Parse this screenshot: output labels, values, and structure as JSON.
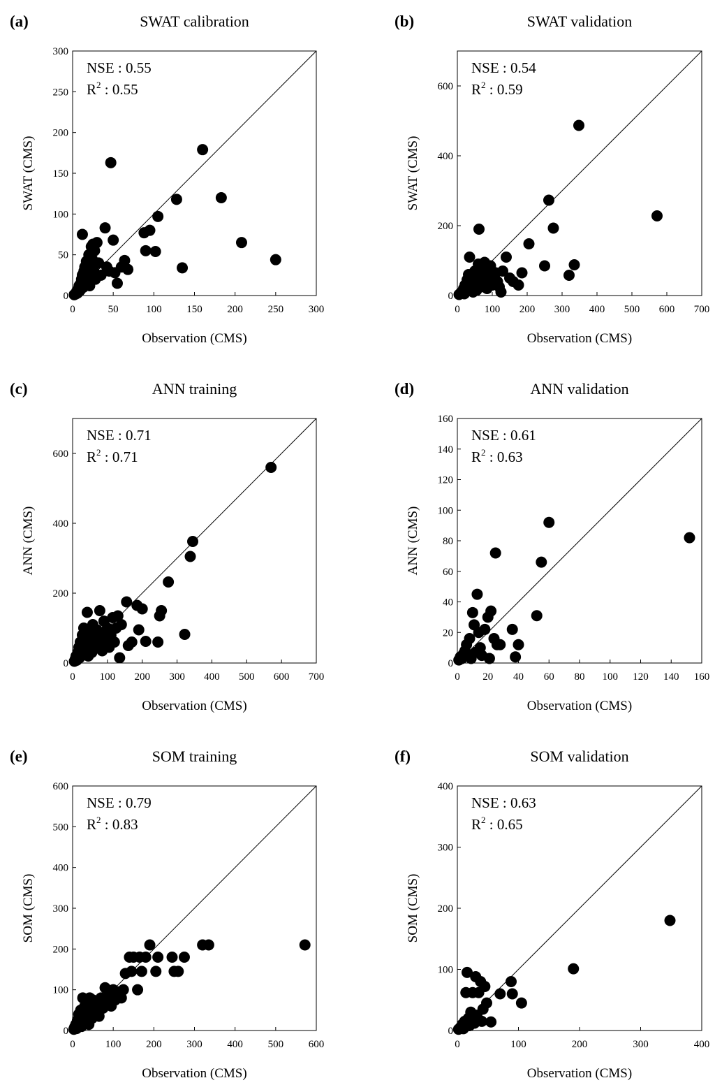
{
  "figure": {
    "panels": [
      {
        "id": "a",
        "panel_label": "(a)",
        "title": "SWAT calibration",
        "nse_label": "NSE : 0.55",
        "r2_prefix": "R",
        "r2_sup": "2",
        "r2_value": " : 0.55"
      },
      {
        "id": "b",
        "panel_label": "(b)",
        "title": "SWAT validation",
        "nse_label": "NSE : 0.54",
        "r2_prefix": "R",
        "r2_sup": "2",
        "r2_value": " : 0.59"
      },
      {
        "id": "c",
        "panel_label": "(c)",
        "title": "ANN training",
        "nse_label": "NSE : 0.71",
        "r2_prefix": "R",
        "r2_sup": "2",
        "r2_value": " : 0.71"
      },
      {
        "id": "d",
        "panel_label": "(d)",
        "title": "ANN validation",
        "nse_label": "NSE : 0.61",
        "r2_prefix": "R",
        "r2_sup": "2",
        "r2_value": " : 0.63"
      },
      {
        "id": "e",
        "panel_label": "(e)",
        "title": "SOM training",
        "nse_label": "NSE : 0.79",
        "r2_prefix": "R",
        "r2_sup": "2",
        "r2_value": " : 0.83"
      },
      {
        "id": "f",
        "panel_label": "(f)",
        "title": "SOM validation",
        "nse_label": "NSE : 0.63",
        "r2_prefix": "R",
        "r2_sup": "2",
        "r2_value": " : 0.65"
      }
    ]
  },
  "chart_data": [
    {
      "type": "scatter",
      "title": "SWAT calibration",
      "xlabel": "Observation (CMS)",
      "ylabel": "SWAT (CMS)",
      "xlim": [
        0,
        300
      ],
      "ylim": [
        0,
        300
      ],
      "xticks": [
        "0",
        "50",
        "100",
        "150",
        "200",
        "250",
        "300"
      ],
      "yticks": [
        "0",
        "50",
        "100",
        "150",
        "200",
        "250",
        "300"
      ],
      "reference_line": "1:1",
      "points": [
        [
          2,
          1
        ],
        [
          4,
          2
        ],
        [
          5,
          5
        ],
        [
          6,
          3
        ],
        [
          7,
          8
        ],
        [
          8,
          12
        ],
        [
          9,
          6
        ],
        [
          10,
          15
        ],
        [
          11,
          20
        ],
        [
          12,
          25
        ],
        [
          13,
          10
        ],
        [
          14,
          30
        ],
        [
          15,
          35
        ],
        [
          16,
          22
        ],
        [
          17,
          42
        ],
        [
          18,
          18
        ],
        [
          19,
          28
        ],
        [
          20,
          50
        ],
        [
          21,
          12
        ],
        [
          22,
          38
        ],
        [
          23,
          60
        ],
        [
          24,
          45
        ],
        [
          25,
          63
        ],
        [
          26,
          30
        ],
        [
          27,
          55
        ],
        [
          28,
          20
        ],
        [
          30,
          65
        ],
        [
          32,
          40
        ],
        [
          35,
          25
        ],
        [
          40,
          83
        ],
        [
          42,
          35
        ],
        [
          45,
          30
        ],
        [
          47,
          163
        ],
        [
          50,
          68
        ],
        [
          52,
          28
        ],
        [
          55,
          15
        ],
        [
          60,
          35
        ],
        [
          64,
          43
        ],
        [
          68,
          32
        ],
        [
          88,
          77
        ],
        [
          90,
          55
        ],
        [
          95,
          80
        ],
        [
          102,
          54
        ],
        [
          105,
          97
        ],
        [
          12,
          75
        ],
        [
          128,
          118
        ],
        [
          135,
          34
        ],
        [
          160,
          179
        ],
        [
          183,
          120
        ],
        [
          208,
          65
        ],
        [
          250,
          44
        ]
      ]
    },
    {
      "type": "scatter",
      "title": "SWAT validation",
      "xlabel": "Observation (CMS)",
      "ylabel": "SWAT (CMS)",
      "xlim": [
        0,
        700
      ],
      "ylim": [
        0,
        700
      ],
      "xticks": [
        "0",
        "100",
        "200",
        "300",
        "400",
        "500",
        "600",
        "700"
      ],
      "yticks": [
        "0",
        "200",
        "400",
        "600"
      ],
      "reference_line": "1:1",
      "points": [
        [
          5,
          3
        ],
        [
          10,
          8
        ],
        [
          15,
          12
        ],
        [
          18,
          20
        ],
        [
          20,
          5
        ],
        [
          22,
          30
        ],
        [
          25,
          15
        ],
        [
          28,
          45
        ],
        [
          30,
          25
        ],
        [
          32,
          60
        ],
        [
          35,
          110
        ],
        [
          38,
          35
        ],
        [
          40,
          20
        ],
        [
          42,
          50
        ],
        [
          45,
          10
        ],
        [
          48,
          40
        ],
        [
          50,
          70
        ],
        [
          52,
          30
        ],
        [
          55,
          15
        ],
        [
          58,
          55
        ],
        [
          60,
          90
        ],
        [
          62,
          190
        ],
        [
          65,
          40
        ],
        [
          68,
          25
        ],
        [
          70,
          60
        ],
        [
          72,
          80
        ],
        [
          75,
          35
        ],
        [
          78,
          95
        ],
        [
          80,
          50
        ],
        [
          85,
          20
        ],
        [
          88,
          75
        ],
        [
          90,
          45
        ],
        [
          95,
          85
        ],
        [
          100,
          30
        ],
        [
          105,
          55
        ],
        [
          110,
          65
        ],
        [
          115,
          40
        ],
        [
          120,
          25
        ],
        [
          125,
          10
        ],
        [
          130,
          70
        ],
        [
          140,
          110
        ],
        [
          150,
          50
        ],
        [
          160,
          40
        ],
        [
          175,
          30
        ],
        [
          185,
          65
        ],
        [
          205,
          148
        ],
        [
          250,
          85
        ],
        [
          262,
          273
        ],
        [
          275,
          193
        ],
        [
          320,
          58
        ],
        [
          335,
          88
        ],
        [
          348,
          487
        ],
        [
          572,
          228
        ]
      ]
    },
    {
      "type": "scatter",
      "title": "ANN training",
      "xlabel": "Observation (CMS)",
      "ylabel": "ANN (CMS)",
      "xlim": [
        0,
        700
      ],
      "ylim": [
        0,
        700
      ],
      "xticks": [
        "0",
        "100",
        "200",
        "300",
        "400",
        "500",
        "600",
        "700"
      ],
      "yticks": [
        "0",
        "200",
        "400",
        "600"
      ],
      "reference_line": "1:1",
      "points": [
        [
          5,
          5
        ],
        [
          8,
          12
        ],
        [
          10,
          20
        ],
        [
          12,
          8
        ],
        [
          15,
          30
        ],
        [
          18,
          45
        ],
        [
          20,
          15
        ],
        [
          22,
          60
        ],
        [
          25,
          35
        ],
        [
          28,
          80
        ],
        [
          30,
          25
        ],
        [
          32,
          100
        ],
        [
          35,
          50
        ],
        [
          38,
          70
        ],
        [
          40,
          40
        ],
        [
          42,
          145
        ],
        [
          45,
          20
        ],
        [
          48,
          90
        ],
        [
          50,
          60
        ],
        [
          55,
          30
        ],
        [
          58,
          110
        ],
        [
          60,
          75
        ],
        [
          65,
          45
        ],
        [
          70,
          95
        ],
        [
          75,
          55
        ],
        [
          78,
          150
        ],
        [
          80,
          85
        ],
        [
          85,
          35
        ],
        [
          90,
          120
        ],
        [
          95,
          65
        ],
        [
          100,
          100
        ],
        [
          105,
          45
        ],
        [
          110,
          80
        ],
        [
          115,
          130
        ],
        [
          120,
          60
        ],
        [
          125,
          100
        ],
        [
          130,
          135
        ],
        [
          135,
          15
        ],
        [
          140,
          110
        ],
        [
          155,
          175
        ],
        [
          160,
          50
        ],
        [
          170,
          60
        ],
        [
          185,
          165
        ],
        [
          190,
          95
        ],
        [
          200,
          155
        ],
        [
          210,
          62
        ],
        [
          245,
          60
        ],
        [
          250,
          135
        ],
        [
          255,
          150
        ],
        [
          275,
          232
        ],
        [
          322,
          82
        ],
        [
          338,
          305
        ],
        [
          345,
          348
        ],
        [
          570,
          560
        ]
      ]
    },
    {
      "type": "scatter",
      "title": "ANN validation",
      "xlabel": "Observation (CMS)",
      "ylabel": "ANN (CMS)",
      "xlim": [
        0,
        160
      ],
      "ylim": [
        0,
        160
      ],
      "xticks": [
        "0",
        "20",
        "40",
        "60",
        "80",
        "100",
        "120",
        "140",
        "160"
      ],
      "yticks": [
        "0",
        "20",
        "40",
        "60",
        "80",
        "100",
        "120",
        "140",
        "160"
      ],
      "reference_line": "1:1",
      "points": [
        [
          1,
          2
        ],
        [
          2,
          4
        ],
        [
          3,
          3
        ],
        [
          4,
          6
        ],
        [
          5,
          8
        ],
        [
          6,
          12
        ],
        [
          7,
          5
        ],
        [
          8,
          16
        ],
        [
          9,
          3
        ],
        [
          10,
          33
        ],
        [
          11,
          25
        ],
        [
          12,
          7
        ],
        [
          13,
          45
        ],
        [
          14,
          20
        ],
        [
          15,
          10
        ],
        [
          16,
          5
        ],
        [
          18,
          22
        ],
        [
          20,
          30
        ],
        [
          21,
          3
        ],
        [
          22,
          34
        ],
        [
          24,
          16
        ],
        [
          25,
          72
        ],
        [
          26,
          12
        ],
        [
          28,
          12
        ],
        [
          36,
          22
        ],
        [
          38,
          4
        ],
        [
          40,
          12
        ],
        [
          52,
          31
        ],
        [
          55,
          66
        ],
        [
          60,
          92
        ],
        [
          152,
          82
        ]
      ]
    },
    {
      "type": "scatter",
      "title": "SOM training",
      "xlabel": "Observation (CMS)",
      "ylabel": "SOM (CMS)",
      "xlim": [
        0,
        600
      ],
      "ylim": [
        0,
        600
      ],
      "xticks": [
        "0",
        "100",
        "200",
        "300",
        "400",
        "500",
        "600"
      ],
      "yticks": [
        "0",
        "100",
        "200",
        "300",
        "400",
        "500",
        "600"
      ],
      "reference_line": "1:1",
      "points": [
        [
          3,
          3
        ],
        [
          5,
          8
        ],
        [
          8,
          15
        ],
        [
          10,
          5
        ],
        [
          12,
          25
        ],
        [
          15,
          40
        ],
        [
          18,
          20
        ],
        [
          20,
          50
        ],
        [
          22,
          10
        ],
        [
          25,
          80
        ],
        [
          28,
          35
        ],
        [
          30,
          60
        ],
        [
          32,
          25
        ],
        [
          35,
          70
        ],
        [
          38,
          45
        ],
        [
          40,
          15
        ],
        [
          42,
          80
        ],
        [
          45,
          55
        ],
        [
          48,
          30
        ],
        [
          50,
          75
        ],
        [
          55,
          45
        ],
        [
          60,
          65
        ],
        [
          65,
          35
        ],
        [
          70,
          80
        ],
        [
          75,
          55
        ],
        [
          80,
          105
        ],
        [
          85,
          70
        ],
        [
          90,
          90
        ],
        [
          95,
          60
        ],
        [
          100,
          100
        ],
        [
          105,
          75
        ],
        [
          110,
          95
        ],
        [
          120,
          80
        ],
        [
          125,
          100
        ],
        [
          130,
          140
        ],
        [
          140,
          180
        ],
        [
          145,
          145
        ],
        [
          150,
          180
        ],
        [
          160,
          100
        ],
        [
          165,
          180
        ],
        [
          170,
          145
        ],
        [
          180,
          180
        ],
        [
          190,
          210
        ],
        [
          205,
          145
        ],
        [
          210,
          180
        ],
        [
          245,
          180
        ],
        [
          250,
          145
        ],
        [
          260,
          145
        ],
        [
          275,
          180
        ],
        [
          320,
          210
        ],
        [
          335,
          210
        ],
        [
          572,
          210
        ]
      ]
    },
    {
      "type": "scatter",
      "title": "SOM validation",
      "xlabel": "Observation (CMS)",
      "ylabel": "SOM (CMS)",
      "xlim": [
        0,
        400
      ],
      "ylim": [
        0,
        400
      ],
      "xticks": [
        "0",
        "100",
        "200",
        "300",
        "400"
      ],
      "yticks": [
        "0",
        "100",
        "200",
        "300",
        "400"
      ],
      "reference_line": "1:1",
      "points": [
        [
          2,
          2
        ],
        [
          5,
          5
        ],
        [
          8,
          10
        ],
        [
          10,
          3
        ],
        [
          12,
          15
        ],
        [
          14,
          62
        ],
        [
          16,
          95
        ],
        [
          18,
          20
        ],
        [
          20,
          8
        ],
        [
          22,
          30
        ],
        [
          25,
          62
        ],
        [
          28,
          12
        ],
        [
          30,
          88
        ],
        [
          32,
          25
        ],
        [
          35,
          62
        ],
        [
          38,
          80
        ],
        [
          40,
          15
        ],
        [
          42,
          35
        ],
        [
          45,
          72
        ],
        [
          48,
          45
        ],
        [
          55,
          14
        ],
        [
          70,
          60
        ],
        [
          88,
          80
        ],
        [
          90,
          60
        ],
        [
          105,
          45
        ],
        [
          190,
          101
        ],
        [
          348,
          180
        ]
      ]
    }
  ]
}
